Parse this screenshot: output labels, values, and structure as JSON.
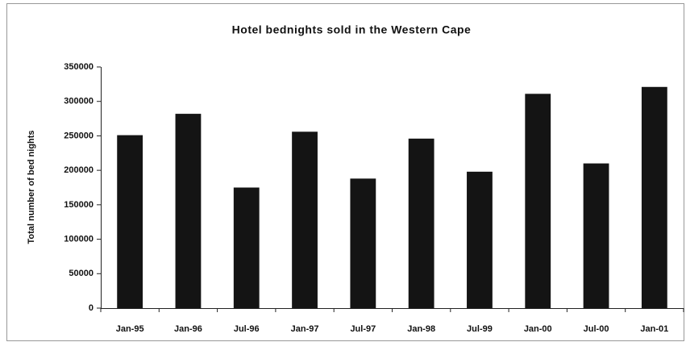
{
  "chart_data": {
    "type": "bar",
    "title": "Hotel bednights sold in the Western Cape",
    "y_label": "Total number of bed nights",
    "categories": [
      "Jan-95",
      "Jan-96",
      "Jul-96",
      "Jan-97",
      "Jul-97",
      "Jan-98",
      "Jul-99",
      "Jan-00",
      "Jul-00",
      "Jan-01"
    ],
    "values": [
      251000,
      282000,
      175000,
      256000,
      188000,
      246000,
      198000,
      311000,
      210000,
      321000
    ],
    "color": "#141414",
    "ylim": [
      0,
      350000
    ],
    "yticks": [
      0,
      50000,
      100000,
      150000,
      200000,
      250000,
      300000,
      350000
    ],
    "grid": false
  }
}
